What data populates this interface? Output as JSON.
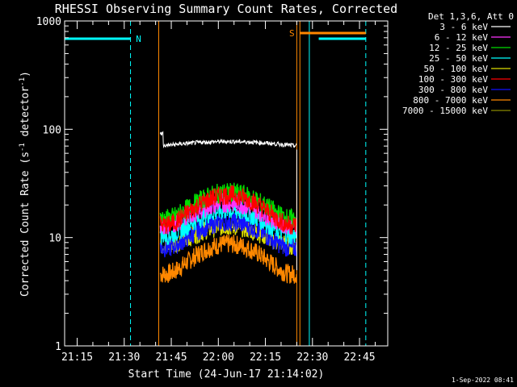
{
  "chart_data": {
    "type": "line",
    "title": "RHESSI Observing Summary Count Rates, Corrected",
    "xlabel": "Start Time (24-Jun-17 21:14:02)",
    "ylabel": "Corrected Count Rate (s⁻¹ detector⁻¹)",
    "ylabel_parts": {
      "pre": "Corrected Count Rate (s",
      "sup1": "-1",
      "mid": " detector",
      "sup2": "-1",
      "post": ")"
    },
    "yscale": "log",
    "ylim": [
      1,
      1000
    ],
    "xlim": [
      "21:11",
      "22:54"
    ],
    "x_ticks": [
      "21:15",
      "21:30",
      "21:45",
      "22:00",
      "22:15",
      "22:30",
      "22:45"
    ],
    "y_ticks": [
      "1",
      "10",
      "100",
      "1000"
    ],
    "legend_header": "Det 1,3,6, Att 0",
    "legend_position": "top-right",
    "series": [
      {
        "name": "3 - 6 keV",
        "color": "#ffffff",
        "level": 70,
        "arc": 1.08
      },
      {
        "name": "6 - 12 keV",
        "color": "#ff33ff",
        "level": 13,
        "arc": 1.6
      },
      {
        "name": "12 - 25 keV",
        "color": "#00dd00",
        "level": 15,
        "arc": 1.75
      },
      {
        "name": "25 - 50 keV",
        "color": "#00ffff",
        "level": 10.5,
        "arc": 1.7
      },
      {
        "name": "50 - 100 keV",
        "color": "#dddd00",
        "level": 8.5,
        "arc": 1.5
      },
      {
        "name": "100 - 300 keV",
        "color": "#ff0000",
        "level": 13,
        "arc": 1.9
      },
      {
        "name": "300 - 800 keV",
        "color": "#1111ff",
        "level": 8,
        "arc": 1.75
      },
      {
        "name": "800 - 7000 keV",
        "color": "#ff8800",
        "level": 4.6,
        "arc": 1.9
      },
      {
        "name": "7000 - 15000 keV",
        "color": "#888800",
        "level": 4,
        "arc": 1.0
      }
    ],
    "data_window": [
      "21:41",
      "22:25"
    ],
    "flags": [
      {
        "label": "N",
        "color": "#00ffff",
        "bars": [
          [
            "21:11",
            "21:32"
          ],
          [
            "22:32",
            "22:47"
          ]
        ],
        "lines": [
          "21:11",
          "21:32",
          "22:29",
          "22:47"
        ]
      },
      {
        "label": "S",
        "color": "#ff8800",
        "bars": [
          [
            "22:26",
            "22:47"
          ]
        ],
        "lines": [
          "21:41",
          "22:25",
          "22:26"
        ]
      }
    ],
    "timestamp": "1-Sep-2022 08:41"
  }
}
